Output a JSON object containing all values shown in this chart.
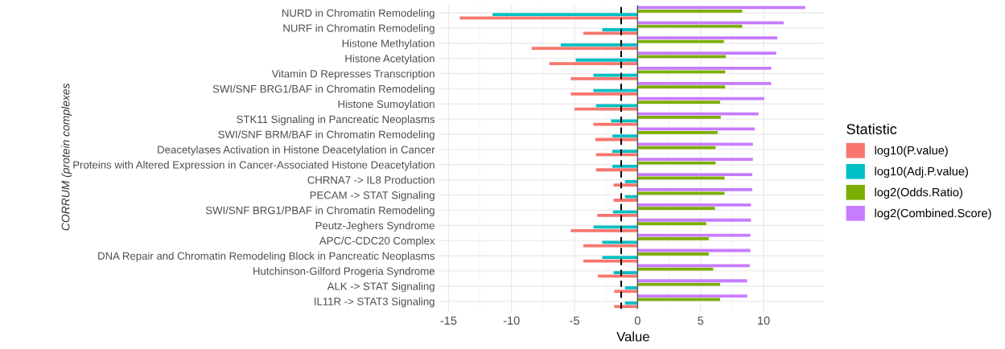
{
  "chart_data": {
    "type": "bar",
    "orientation": "horizontal",
    "xlabel": "Value",
    "ylabel": "CORRUM (protein complexes",
    "legend_title": "Statistic",
    "legend": "right",
    "categories": [
      "NURD in Chromatin Remodeling",
      "NURF in Chromatin Remodeling",
      "Histone Methylation",
      "Histone Acetylation",
      "Vitamin D Represses Transcription",
      "SWI/SNF BRG1/BAF in Chromatin Remodeling",
      "Histone Sumoylation",
      "STK11 Signaling in Pancreatic Neoplasms",
      "SWI/SNF BRM/BAF in Chromatin Remodeling",
      "Deacetylases Activation in Histone Deacetylation in Cancer",
      "Proteins with Altered Expression in Cancer-Associated Histone Deacetylation",
      "CHRNA7 -> IL8 Production",
      "PECAM -> STAT Signaling",
      "SWI/SNF BRG1/PBAF in Chromatin Remodeling",
      "Peutz-Jeghers Syndrome",
      "APC/C-CDC20 Complex",
      "DNA Repair and Chromatin Remodeling Block in Pancreatic Neoplasms",
      "Hutchinson-Gilford Progeria Syndrome",
      "ALK -> STAT Signaling",
      "IL11R -> STAT3 Signaling"
    ],
    "series": [
      {
        "name": "log10(P.value)",
        "color": "#f8766d",
        "values": [
          -14.1,
          -4.3,
          -8.4,
          -7.0,
          -5.3,
          -5.3,
          -5.0,
          -3.5,
          -3.35,
          -3.3,
          -3.3,
          -1.9,
          -1.9,
          -3.2,
          -5.3,
          -4.3,
          -4.3,
          -3.15,
          -1.85,
          -1.85
        ]
      },
      {
        "name": "log10(Adj.P.value)",
        "color": "#00bfc4",
        "values": [
          -11.5,
          -2.8,
          -6.1,
          -4.9,
          -3.5,
          -3.5,
          -3.3,
          -2.1,
          -2.0,
          -2.0,
          -2.0,
          -1.0,
          -1.0,
          -1.95,
          -3.5,
          -2.8,
          -2.8,
          -1.9,
          -1.0,
          -1.0
        ]
      },
      {
        "name": "log2(Odds.Ratio)",
        "color": "#7cae00",
        "values": [
          8.3,
          8.3,
          6.85,
          7.0,
          6.95,
          6.95,
          6.55,
          6.6,
          6.35,
          6.2,
          6.2,
          6.9,
          6.9,
          6.15,
          5.45,
          5.65,
          5.65,
          6.0,
          6.55,
          6.55
        ]
      },
      {
        "name": "log2(Combined.Score)",
        "color": "#c77cff",
        "values": [
          13.3,
          11.6,
          11.1,
          11.0,
          10.6,
          10.6,
          10.05,
          9.6,
          9.3,
          9.15,
          9.15,
          9.1,
          9.1,
          9.0,
          9.0,
          8.95,
          8.95,
          8.9,
          8.7,
          8.7
        ]
      }
    ],
    "xlim": [
      -15.5,
      14.8
    ],
    "xticks": [
      -15,
      -10,
      -5,
      0,
      5,
      10
    ],
    "grid": true,
    "ref_lines": [
      {
        "axis": "x",
        "value": -1.3,
        "line_style": "dashed",
        "color": "#000000"
      },
      {
        "axis": "x",
        "value": 0,
        "line_style": "solid",
        "color": "#555555"
      }
    ]
  }
}
